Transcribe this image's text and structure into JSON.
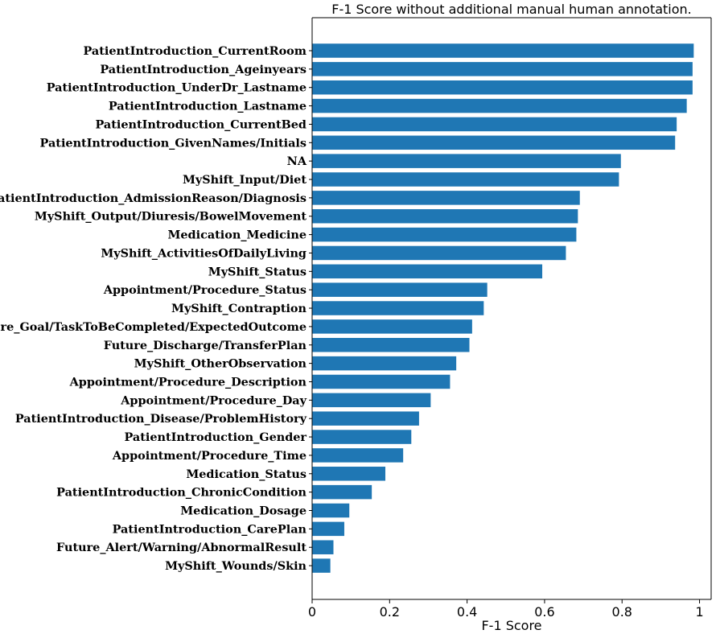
{
  "chart_data": {
    "type": "bar",
    "orientation": "horizontal",
    "title": "F-1 Score without additional manual human annotation.",
    "xlabel": "F-1 Score",
    "ylabel": "",
    "xlim": [
      0,
      1.03
    ],
    "xticks": [
      0,
      0.2,
      0.4,
      0.6,
      0.8,
      1
    ],
    "xtick_labels": [
      "0",
      "0.2",
      "0.4",
      "0.6",
      "0.8",
      "1"
    ],
    "grid": false,
    "legend": "none",
    "bar_color": "#1f77b4",
    "categories": [
      "PatientIntroduction_CurrentRoom",
      "PatientIntroduction_Ageinyears",
      "PatientIntroduction_UnderDr_Lastname",
      "PatientIntroduction_Lastname",
      "PatientIntroduction_CurrentBed",
      "PatientIntroduction_GivenNames/Initials",
      "NA",
      "MyShift_Input/Diet",
      "PatientIntroduction_AdmissionReason/Diagnosis",
      "MyShift_Output/Diuresis/BowelMovement",
      "Medication_Medicine",
      "MyShift_ActivitiesOfDailyLiving",
      "MyShift_Status",
      "Appointment/Procedure_Status",
      "MyShift_Contraption",
      "Future_Goal/TaskToBeCompleted/ExpectedOutcome",
      "Future_Discharge/TransferPlan",
      "MyShift_OtherObservation",
      "Appointment/Procedure_Description",
      "Appointment/Procedure_Day",
      "PatientIntroduction_Disease/ProblemHistory",
      "PatientIntroduction_Gender",
      "Appointment/Procedure_Time",
      "Medication_Status",
      "PatientIntroduction_ChronicCondition",
      "Medication_Dosage",
      "PatientIntroduction_CarePlan",
      "Future_Alert/Warning/AbnormalResult",
      "MyShift_Wounds/Skin"
    ],
    "values": [
      0.985,
      0.982,
      0.982,
      0.967,
      0.941,
      0.937,
      0.797,
      0.792,
      0.691,
      0.686,
      0.682,
      0.655,
      0.594,
      0.452,
      0.443,
      0.413,
      0.406,
      0.372,
      0.356,
      0.306,
      0.276,
      0.256,
      0.235,
      0.189,
      0.154,
      0.096,
      0.083,
      0.055,
      0.047
    ]
  }
}
